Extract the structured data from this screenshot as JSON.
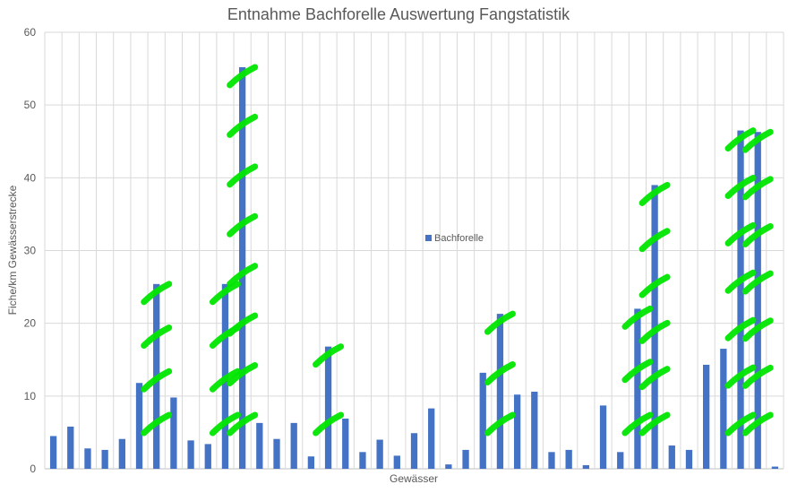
{
  "chart_data": {
    "type": "bar",
    "title": "Entnahme Bachforelle Auswertung Fangstatistik",
    "xlabel": "Gewässer",
    "ylabel": "Fiche/km Gewässerstrecke",
    "ylim": [
      0,
      60
    ],
    "yticks": [
      0,
      10,
      20,
      30,
      40,
      50,
      60
    ],
    "grid": true,
    "legend_position": "center",
    "series": [
      {
        "name": "Bachforelle",
        "color": "#4472C4",
        "values": [
          4.5,
          5.8,
          2.8,
          2.6,
          4.1,
          11.8,
          25.4,
          9.8,
          3.9,
          3.4,
          25.4,
          55.2,
          6.3,
          4.1,
          6.3,
          1.7,
          16.8,
          6.9,
          2.3,
          4.0,
          1.8,
          4.9,
          8.3,
          0.6,
          2.6,
          13.2,
          21.3,
          10.2,
          10.6,
          2.3,
          2.6,
          0.5,
          8.7,
          2.3,
          22.0,
          39.0,
          3.2,
          2.6,
          14.3,
          16.5,
          46.5,
          46.3,
          0.3
        ]
      }
    ],
    "highlighted_bar_indices": [
      6,
      10,
      11,
      16,
      26,
      34,
      35,
      40,
      41
    ],
    "highlight_color": "#00E600"
  }
}
